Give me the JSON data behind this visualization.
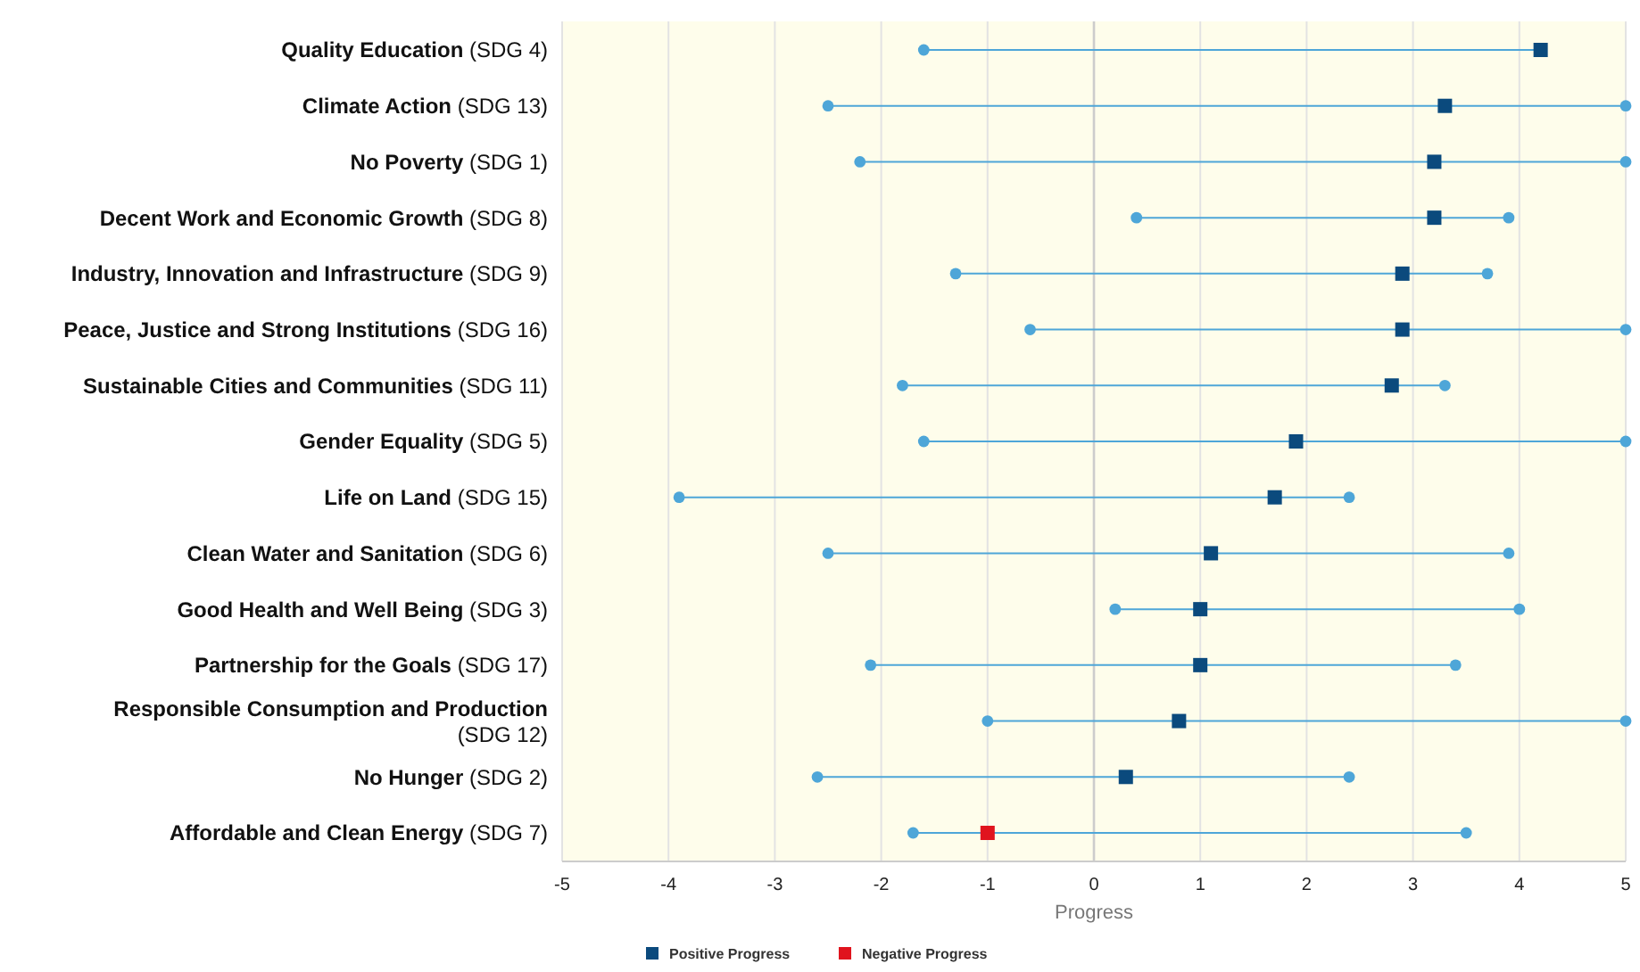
{
  "chart_data": {
    "type": "scatter",
    "orientation": "horizontal",
    "xlabel": "Progress",
    "xlim": [
      -5,
      5
    ],
    "xticks": [
      -5,
      -4,
      -3,
      -2,
      -1,
      0,
      1,
      2,
      3,
      4,
      5
    ],
    "grid": "x",
    "legend": "bottom",
    "ref_lines": [
      {
        "axis": "x",
        "value": 0,
        "color": "#cccccc"
      }
    ],
    "categories": [
      "Quality Education (SDG 4)",
      "Climate Action (SDG 13)",
      "No Poverty (SDG 1)",
      "Decent Work and Economic Growth (SDG 8)",
      "Industry, Innovation and Infrastructure (SDG 9)",
      "Peace, Justice and Strong Institutions (SDG 16)",
      "Sustainable Cities and Communities (SDG 11)",
      "Gender Equality (SDG 5)",
      "Life on Land (SDG 15)",
      "Clean Water and Sanitation (SDG 6)",
      "Good Health and Well Being (SDG 3)",
      "Partnership for the Goals (SDG 17)",
      "Responsible Consumption and Production (SDG 12)",
      "No Hunger (SDG 2)",
      "Affordable and Clean Energy (SDG 7)"
    ],
    "series": [
      {
        "color": "#4ea6d8",
        "marker": "circle",
        "values": [
          -1.6,
          -2.5,
          -2.2,
          0.4,
          -1.3,
          -0.6,
          -1.8,
          -1.6,
          -3.9,
          -2.5,
          0.2,
          -2.1,
          -1.0,
          -2.6,
          -1.7
        ]
      },
      {
        "color": "#4ea6d8",
        "marker": "circle",
        "values": [
          null,
          5,
          5,
          3.9,
          3.7,
          5,
          3.3,
          5,
          2.4,
          3.9,
          4.0,
          3.4,
          5,
          2.4,
          3.5
        ]
      },
      {
        "name": "Positive Progress",
        "color": "#0b4a7d",
        "marker": "square",
        "values": [
          4.2,
          3.3,
          3.2,
          3.2,
          2.9,
          2.9,
          2.8,
          1.9,
          1.7,
          1.1,
          1.0,
          1.0,
          0.8,
          0.3,
          null
        ]
      },
      {
        "name": "Negative Progress",
        "color": "#e0141e",
        "marker": "square",
        "values": [
          null,
          null,
          null,
          null,
          null,
          null,
          null,
          null,
          null,
          null,
          null,
          null,
          null,
          null,
          -1.0
        ]
      }
    ]
  }
}
